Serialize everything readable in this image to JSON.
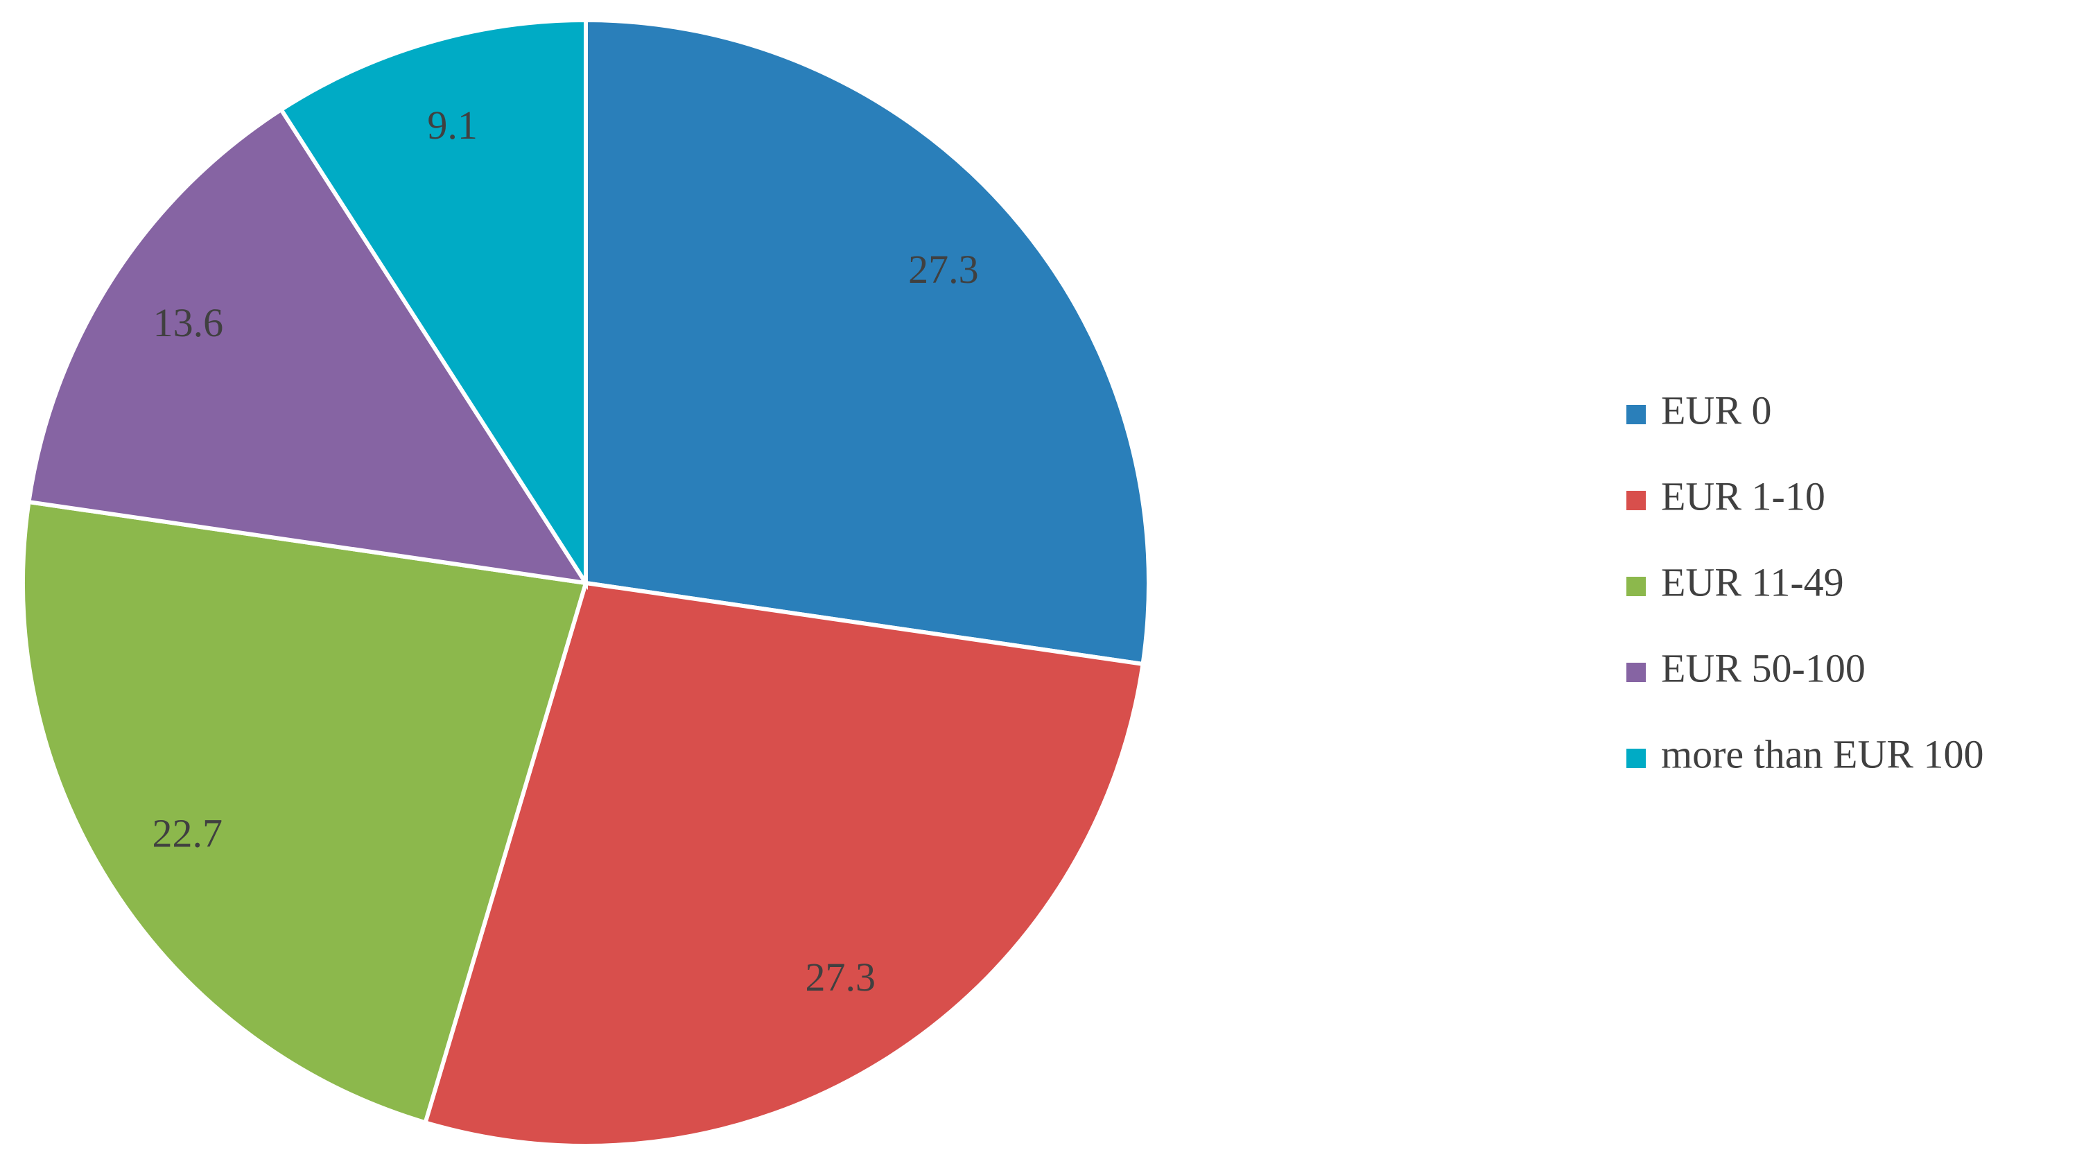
{
  "chart_data": {
    "type": "pie",
    "categories": [
      "EUR 0",
      "EUR 1-10",
      "EUR 11-49",
      "EUR 50-100",
      "more than EUR 100"
    ],
    "values": [
      27.3,
      27.3,
      22.7,
      13.6,
      9.1
    ],
    "colors": [
      "#2a7fba",
      "#d84f4c",
      "#8cb84c",
      "#8664a3",
      "#00abc5"
    ],
    "legend": "right"
  }
}
